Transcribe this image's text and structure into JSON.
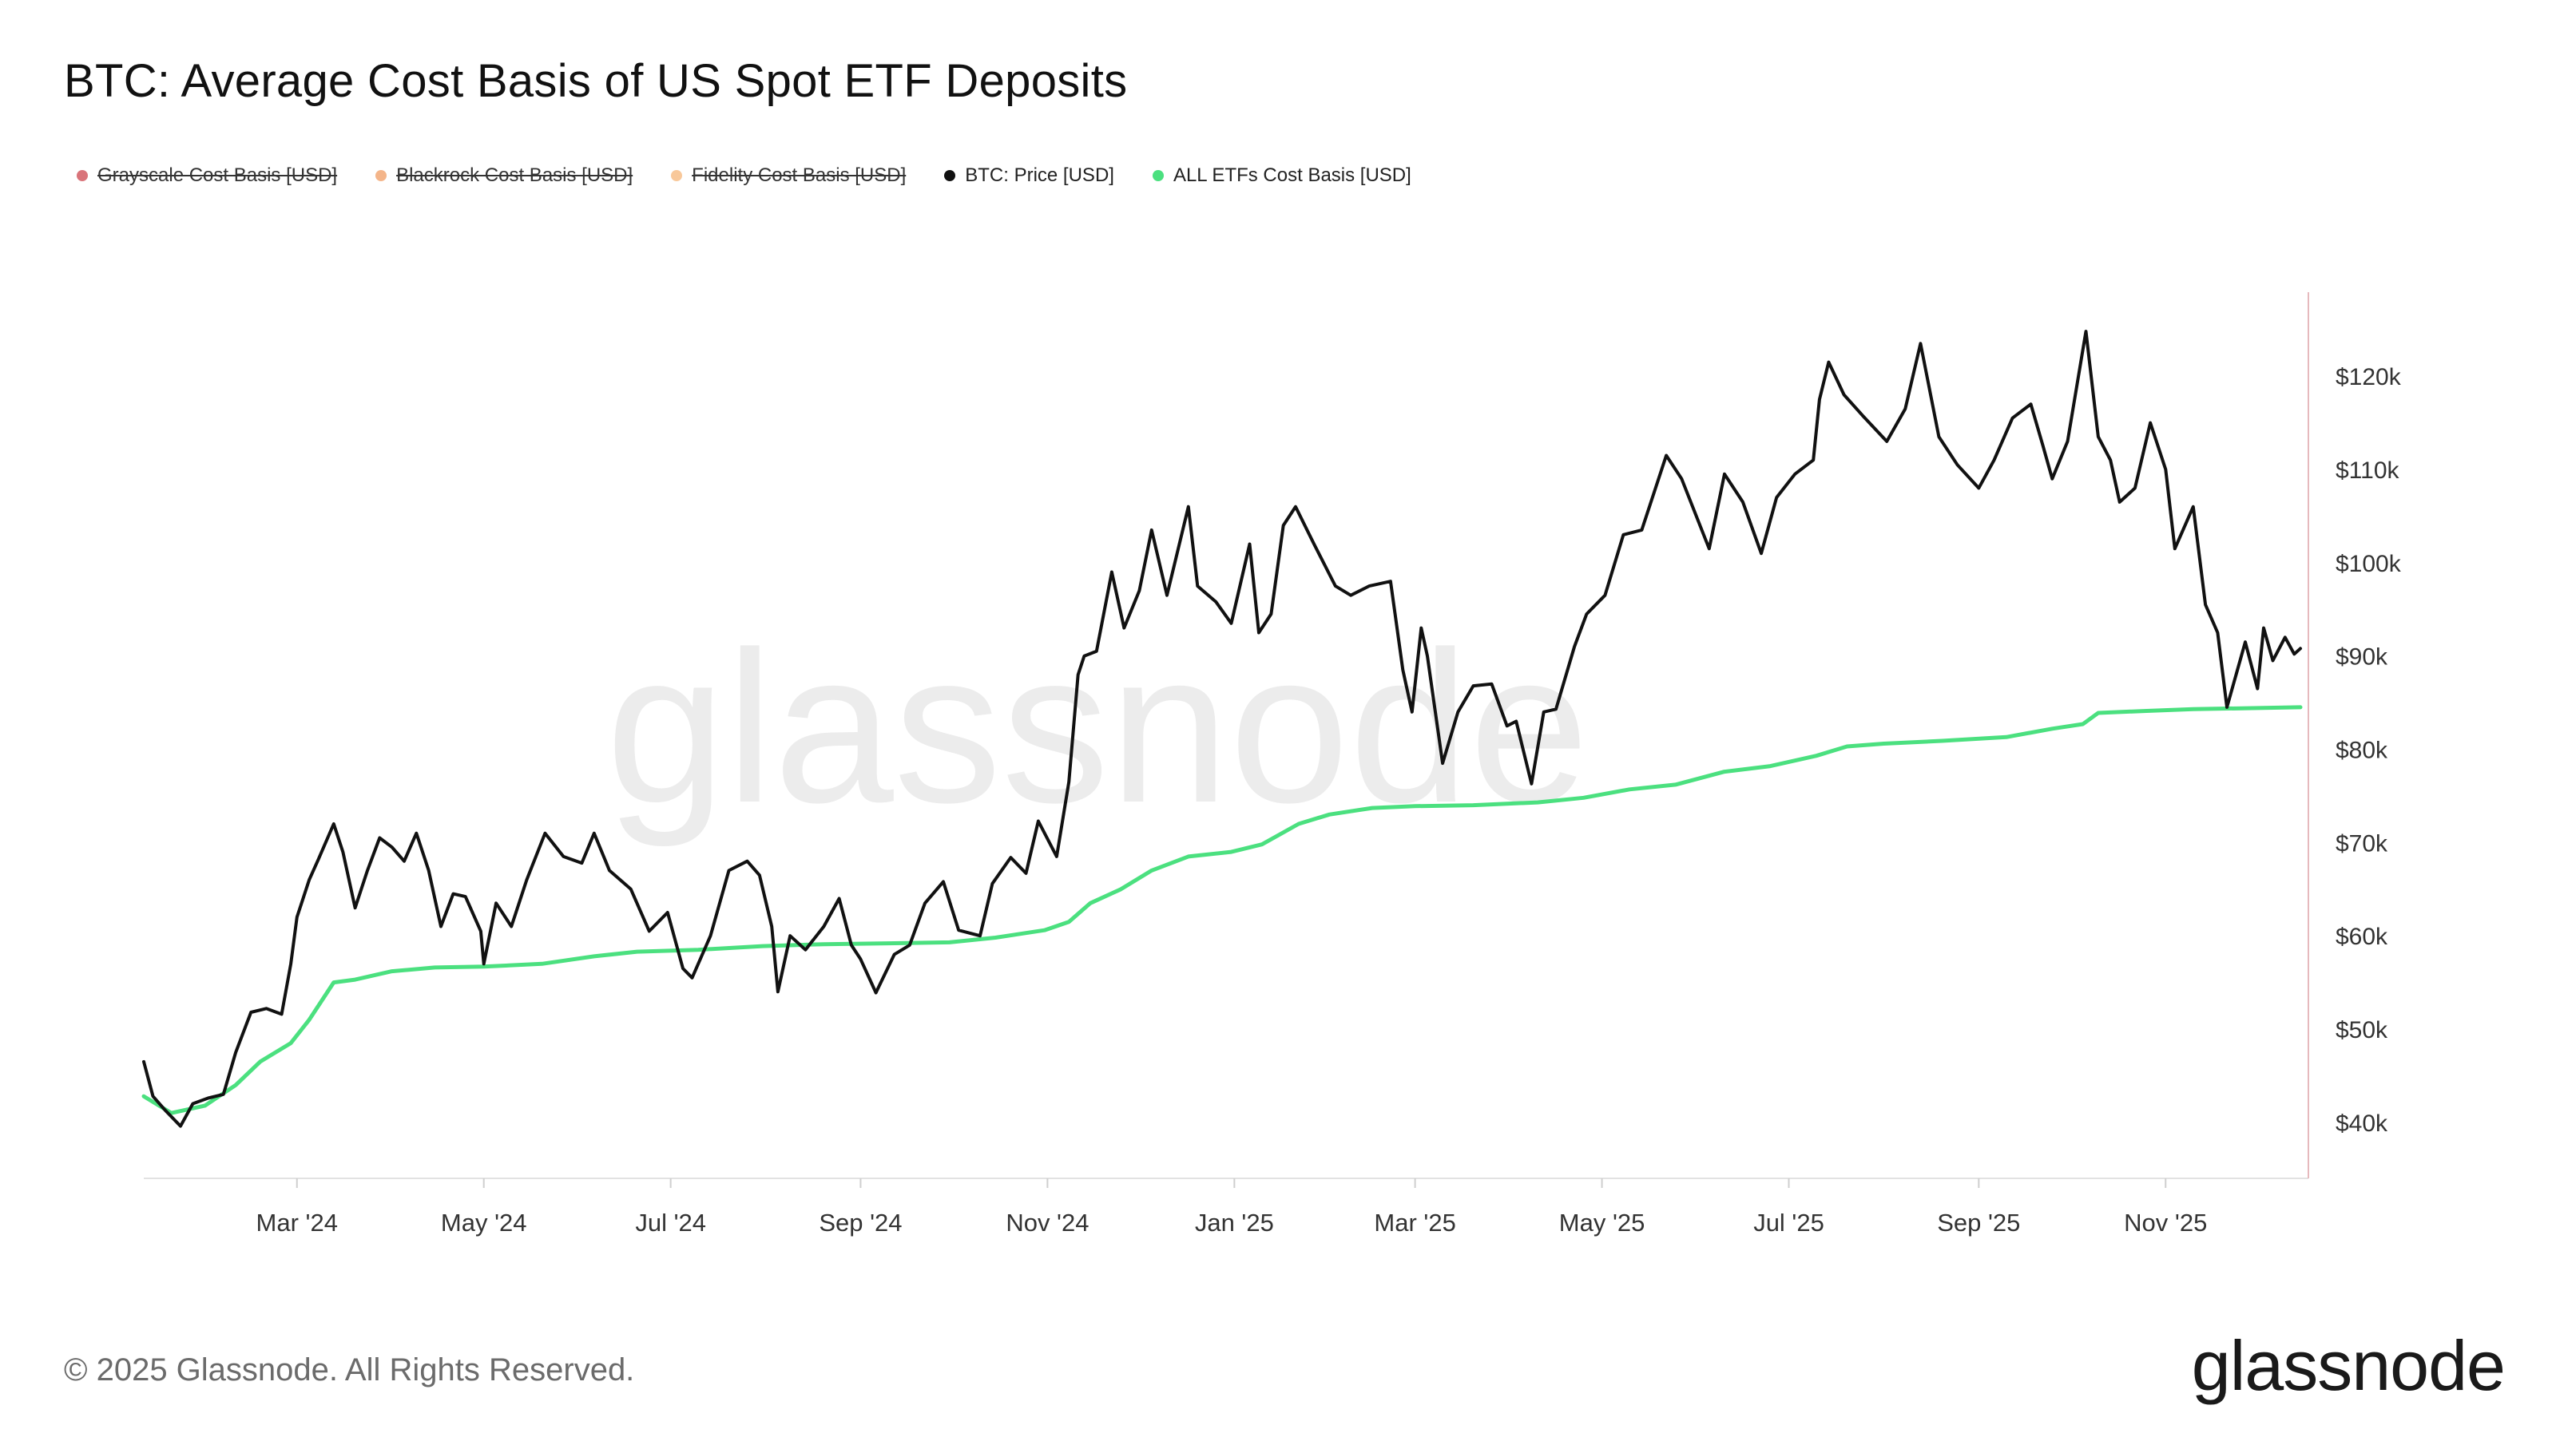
{
  "title": "BTC: Average Cost Basis of US Spot ETF Deposits",
  "legend": [
    {
      "label": "Grayscale Cost Basis [USD]",
      "color": "#d9747a",
      "hidden": true
    },
    {
      "label": "Blackrock Cost Basis [USD]",
      "color": "#f4b58a",
      "hidden": true
    },
    {
      "label": "Fidelity Cost Basis [USD]",
      "color": "#f8c89a",
      "hidden": true
    },
    {
      "label": "BTC: Price [USD]",
      "color": "#111111",
      "hidden": false
    },
    {
      "label": "ALL ETFs Cost Basis [USD]",
      "color": "#4be07f",
      "hidden": false
    }
  ],
  "watermark": "glassnode",
  "footer": {
    "copyright": "© 2025 Glassnode. All Rights Reserved.",
    "logo": "glassnode"
  },
  "chart_data": {
    "type": "line",
    "title": "BTC: Average Cost Basis of US Spot ETF Deposits",
    "xlabel": "",
    "ylabel": "",
    "x_range": [
      "2024-01-11",
      "2025-12-15"
    ],
    "ylim": [
      34000,
      129000
    ],
    "y_axis_position": "right",
    "grid": false,
    "legend_position": "top-left",
    "x_ticks": [
      {
        "date": "2024-03-01",
        "label": "Mar '24"
      },
      {
        "date": "2024-05-01",
        "label": "May '24"
      },
      {
        "date": "2024-07-01",
        "label": "Jul '24"
      },
      {
        "date": "2024-09-01",
        "label": "Sep '24"
      },
      {
        "date": "2024-11-01",
        "label": "Nov '24"
      },
      {
        "date": "2025-01-01",
        "label": "Jan '25"
      },
      {
        "date": "2025-03-01",
        "label": "Mar '25"
      },
      {
        "date": "2025-05-01",
        "label": "May '25"
      },
      {
        "date": "2025-07-01",
        "label": "Jul '25"
      },
      {
        "date": "2025-09-01",
        "label": "Sep '25"
      },
      {
        "date": "2025-11-01",
        "label": "Nov '25"
      }
    ],
    "y_ticks": [
      {
        "value": 40000,
        "label": "$40k"
      },
      {
        "value": 50000,
        "label": "$50k"
      },
      {
        "value": 60000,
        "label": "$60k"
      },
      {
        "value": 70000,
        "label": "$70k"
      },
      {
        "value": 80000,
        "label": "$80k"
      },
      {
        "value": 90000,
        "label": "$90k"
      },
      {
        "value": 100000,
        "label": "$100k"
      },
      {
        "value": 110000,
        "label": "$110k"
      },
      {
        "value": 120000,
        "label": "$120k"
      }
    ],
    "series": [
      {
        "name": "BTC: Price [USD]",
        "color": "#111111",
        "points": [
          [
            "2024-01-11",
            46500
          ],
          [
            "2024-01-14",
            42800
          ],
          [
            "2024-01-18",
            41300
          ],
          [
            "2024-01-23",
            39600
          ],
          [
            "2024-01-27",
            42000
          ],
          [
            "2024-02-01",
            42600
          ],
          [
            "2024-02-06",
            43000
          ],
          [
            "2024-02-10",
            47500
          ],
          [
            "2024-02-15",
            51800
          ],
          [
            "2024-02-20",
            52200
          ],
          [
            "2024-02-25",
            51600
          ],
          [
            "2024-02-28",
            57000
          ],
          [
            "2024-03-01",
            62000
          ],
          [
            "2024-03-05",
            66000
          ],
          [
            "2024-03-08",
            68200
          ],
          [
            "2024-03-13",
            72000
          ],
          [
            "2024-03-16",
            69000
          ],
          [
            "2024-03-20",
            63000
          ],
          [
            "2024-03-24",
            67000
          ],
          [
            "2024-03-28",
            70500
          ],
          [
            "2024-04-01",
            69500
          ],
          [
            "2024-04-05",
            68000
          ],
          [
            "2024-04-09",
            71000
          ],
          [
            "2024-04-13",
            67000
          ],
          [
            "2024-04-17",
            61000
          ],
          [
            "2024-04-21",
            64500
          ],
          [
            "2024-04-25",
            64200
          ],
          [
            "2024-04-30",
            60500
          ],
          [
            "2024-05-01",
            57000
          ],
          [
            "2024-05-05",
            63500
          ],
          [
            "2024-05-10",
            61000
          ],
          [
            "2024-05-15",
            66000
          ],
          [
            "2024-05-21",
            71000
          ],
          [
            "2024-05-27",
            68500
          ],
          [
            "2024-06-02",
            67800
          ],
          [
            "2024-06-06",
            71000
          ],
          [
            "2024-06-11",
            67000
          ],
          [
            "2024-06-18",
            65000
          ],
          [
            "2024-06-24",
            60500
          ],
          [
            "2024-06-30",
            62500
          ],
          [
            "2024-07-05",
            56500
          ],
          [
            "2024-07-08",
            55500
          ],
          [
            "2024-07-14",
            60000
          ],
          [
            "2024-07-20",
            67000
          ],
          [
            "2024-07-26",
            68000
          ],
          [
            "2024-07-30",
            66500
          ],
          [
            "2024-08-03",
            61000
          ],
          [
            "2024-08-05",
            54000
          ],
          [
            "2024-08-09",
            60000
          ],
          [
            "2024-08-14",
            58500
          ],
          [
            "2024-08-20",
            61000
          ],
          [
            "2024-08-25",
            64000
          ],
          [
            "2024-08-29",
            59000
          ],
          [
            "2024-09-01",
            57500
          ],
          [
            "2024-09-06",
            53900
          ],
          [
            "2024-09-12",
            58000
          ],
          [
            "2024-09-17",
            59000
          ],
          [
            "2024-09-22",
            63500
          ],
          [
            "2024-09-28",
            65800
          ],
          [
            "2024-10-03",
            60600
          ],
          [
            "2024-10-10",
            60000
          ],
          [
            "2024-10-14",
            65600
          ],
          [
            "2024-10-20",
            68400
          ],
          [
            "2024-10-25",
            66700
          ],
          [
            "2024-10-29",
            72300
          ],
          [
            "2024-11-04",
            68500
          ],
          [
            "2024-11-08",
            76500
          ],
          [
            "2024-11-11",
            88000
          ],
          [
            "2024-11-13",
            90000
          ],
          [
            "2024-11-17",
            90500
          ],
          [
            "2024-11-22",
            99000
          ],
          [
            "2024-11-26",
            93000
          ],
          [
            "2024-12-01",
            97000
          ],
          [
            "2024-12-05",
            103500
          ],
          [
            "2024-12-10",
            96500
          ],
          [
            "2024-12-17",
            106000
          ],
          [
            "2024-12-20",
            97500
          ],
          [
            "2024-12-26",
            95800
          ],
          [
            "2024-12-31",
            93500
          ],
          [
            "2025-01-06",
            102000
          ],
          [
            "2025-01-09",
            92500
          ],
          [
            "2025-01-13",
            94500
          ],
          [
            "2025-01-17",
            104000
          ],
          [
            "2025-01-21",
            106000
          ],
          [
            "2025-01-27",
            102000
          ],
          [
            "2025-02-03",
            97500
          ],
          [
            "2025-02-08",
            96500
          ],
          [
            "2025-02-14",
            97500
          ],
          [
            "2025-02-21",
            98000
          ],
          [
            "2025-02-25",
            88500
          ],
          [
            "2025-02-28",
            84000
          ],
          [
            "2025-03-03",
            93000
          ],
          [
            "2025-03-05",
            90000
          ],
          [
            "2025-03-10",
            78500
          ],
          [
            "2025-03-15",
            84000
          ],
          [
            "2025-03-20",
            86800
          ],
          [
            "2025-03-26",
            87000
          ],
          [
            "2025-03-31",
            82500
          ],
          [
            "2025-04-03",
            83000
          ],
          [
            "2025-04-08",
            76300
          ],
          [
            "2025-04-12",
            84000
          ],
          [
            "2025-04-16",
            84300
          ],
          [
            "2025-04-22",
            91000
          ],
          [
            "2025-04-26",
            94500
          ],
          [
            "2025-05-02",
            96500
          ],
          [
            "2025-05-08",
            103000
          ],
          [
            "2025-05-14",
            103500
          ],
          [
            "2025-05-22",
            111500
          ],
          [
            "2025-05-27",
            109000
          ],
          [
            "2025-06-05",
            101500
          ],
          [
            "2025-06-10",
            109500
          ],
          [
            "2025-06-16",
            106500
          ],
          [
            "2025-06-22",
            101000
          ],
          [
            "2025-06-27",
            107000
          ],
          [
            "2025-07-03",
            109500
          ],
          [
            "2025-07-09",
            111000
          ],
          [
            "2025-07-11",
            117500
          ],
          [
            "2025-07-14",
            121500
          ],
          [
            "2025-07-19",
            118000
          ],
          [
            "2025-07-25",
            115800
          ],
          [
            "2025-08-02",
            113000
          ],
          [
            "2025-08-08",
            116500
          ],
          [
            "2025-08-13",
            123500
          ],
          [
            "2025-08-19",
            113500
          ],
          [
            "2025-08-25",
            110500
          ],
          [
            "2025-09-01",
            108000
          ],
          [
            "2025-09-06",
            111000
          ],
          [
            "2025-09-12",
            115500
          ],
          [
            "2025-09-18",
            117000
          ],
          [
            "2025-09-22",
            112500
          ],
          [
            "2025-09-25",
            109000
          ],
          [
            "2025-09-30",
            113000
          ],
          [
            "2025-10-06",
            124800
          ],
          [
            "2025-10-10",
            113500
          ],
          [
            "2025-10-14",
            111000
          ],
          [
            "2025-10-17",
            106500
          ],
          [
            "2025-10-22",
            108000
          ],
          [
            "2025-10-27",
            115000
          ],
          [
            "2025-11-01",
            110000
          ],
          [
            "2025-11-04",
            101500
          ],
          [
            "2025-11-10",
            106000
          ],
          [
            "2025-11-14",
            95500
          ],
          [
            "2025-11-18",
            92500
          ],
          [
            "2025-11-21",
            84500
          ],
          [
            "2025-11-24",
            88000
          ],
          [
            "2025-11-27",
            91500
          ],
          [
            "2025-12-01",
            86500
          ],
          [
            "2025-12-03",
            93000
          ],
          [
            "2025-12-06",
            89500
          ],
          [
            "2025-12-10",
            92000
          ],
          [
            "2025-12-13",
            90200
          ],
          [
            "2025-12-15",
            90800
          ]
        ]
      },
      {
        "name": "ALL ETFs Cost Basis [USD]",
        "color": "#4be07f",
        "points": [
          [
            "2024-01-11",
            42800
          ],
          [
            "2024-01-20",
            41000
          ],
          [
            "2024-01-31",
            41800
          ],
          [
            "2024-02-10",
            44000
          ],
          [
            "2024-02-18",
            46500
          ],
          [
            "2024-02-28",
            48500
          ],
          [
            "2024-03-05",
            51000
          ],
          [
            "2024-03-13",
            55000
          ],
          [
            "2024-03-20",
            55300
          ],
          [
            "2024-04-01",
            56200
          ],
          [
            "2024-04-15",
            56600
          ],
          [
            "2024-05-01",
            56700
          ],
          [
            "2024-05-20",
            57000
          ],
          [
            "2024-06-06",
            57800
          ],
          [
            "2024-06-20",
            58300
          ],
          [
            "2024-07-10",
            58500
          ],
          [
            "2024-07-31",
            58900
          ],
          [
            "2024-08-20",
            59100
          ],
          [
            "2024-09-10",
            59200
          ],
          [
            "2024-09-30",
            59300
          ],
          [
            "2024-10-15",
            59800
          ],
          [
            "2024-10-31",
            60600
          ],
          [
            "2024-11-08",
            61500
          ],
          [
            "2024-11-15",
            63500
          ],
          [
            "2024-11-25",
            65000
          ],
          [
            "2024-12-05",
            67000
          ],
          [
            "2024-12-17",
            68500
          ],
          [
            "2024-12-31",
            69000
          ],
          [
            "2025-01-10",
            69800
          ],
          [
            "2025-01-22",
            72000
          ],
          [
            "2025-02-01",
            73000
          ],
          [
            "2025-02-15",
            73700
          ],
          [
            "2025-03-01",
            73900
          ],
          [
            "2025-03-20",
            74000
          ],
          [
            "2025-04-10",
            74300
          ],
          [
            "2025-04-25",
            74800
          ],
          [
            "2025-05-10",
            75700
          ],
          [
            "2025-05-25",
            76200
          ],
          [
            "2025-06-10",
            77600
          ],
          [
            "2025-06-25",
            78200
          ],
          [
            "2025-07-10",
            79300
          ],
          [
            "2025-07-20",
            80300
          ],
          [
            "2025-08-01",
            80600
          ],
          [
            "2025-08-20",
            80900
          ],
          [
            "2025-09-10",
            81300
          ],
          [
            "2025-09-25",
            82200
          ],
          [
            "2025-10-05",
            82700
          ],
          [
            "2025-10-10",
            83900
          ],
          [
            "2025-10-25",
            84100
          ],
          [
            "2025-11-10",
            84300
          ],
          [
            "2025-12-15",
            84500
          ]
        ]
      }
    ]
  }
}
